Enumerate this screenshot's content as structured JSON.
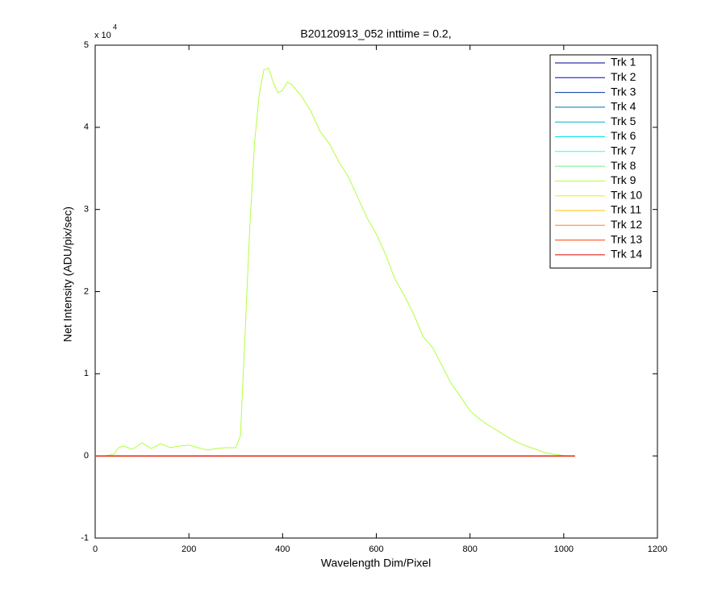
{
  "chart_data": {
    "type": "line",
    "title": "B20120913_052 inttime = 0.2,",
    "xlabel": "Wavelength Dim/Pixel",
    "ylabel": "Net Intensity (ADU/pix/sec)",
    "y_multiplier": "x 10",
    "y_multiplier_exponent": "4",
    "xlim": [
      0,
      1200
    ],
    "xticks": [
      0,
      200,
      400,
      600,
      800,
      1000,
      1200
    ],
    "ylim": [
      -1,
      5
    ],
    "yticks": [
      -1,
      0,
      1,
      2,
      3,
      4,
      5
    ],
    "grid": false,
    "legend": "top-right",
    "series": [
      {
        "name": "Trk 1",
        "color": "#00008f",
        "x": [
          1,
          1024
        ],
        "values": [
          0,
          0
        ]
      },
      {
        "name": "Trk 2",
        "color": "#0000cf",
        "x": [
          1,
          1024
        ],
        "values": [
          0,
          0
        ]
      },
      {
        "name": "Trk 3",
        "color": "#0030a0",
        "x": [
          1,
          1024
        ],
        "values": [
          0,
          0
        ]
      },
      {
        "name": "Trk 4",
        "color": "#0070b0",
        "x": [
          1,
          1024
        ],
        "values": [
          0,
          0
        ]
      },
      {
        "name": "Trk 5",
        "color": "#00b0d0",
        "x": [
          1,
          1024
        ],
        "values": [
          0,
          0
        ]
      },
      {
        "name": "Trk 6",
        "color": "#00e0ef",
        "x": [
          1,
          1024
        ],
        "values": [
          0,
          0
        ]
      },
      {
        "name": "Trk 7",
        "color": "#30ffdf",
        "x": [
          1,
          1024
        ],
        "values": [
          0,
          0
        ]
      },
      {
        "name": "Trk 8",
        "color": "#70ef8f",
        "x": [
          1,
          1024
        ],
        "values": [
          0,
          0
        ]
      },
      {
        "name": "Trk 9",
        "color": "#b0ff3f",
        "x": [
          0,
          20,
          40,
          50,
          60,
          80,
          100,
          120,
          140,
          160,
          180,
          200,
          220,
          240,
          260,
          280,
          300,
          310,
          320,
          330,
          340,
          350,
          360,
          370,
          380,
          390,
          400,
          410,
          420,
          440,
          460,
          480,
          500,
          520,
          540,
          560,
          580,
          600,
          620,
          640,
          660,
          680,
          700,
          720,
          740,
          760,
          780,
          800,
          820,
          840,
          860,
          880,
          900,
          920,
          940,
          960,
          980,
          1000,
          1024
        ],
        "values": [
          0,
          0,
          0.02,
          0.1,
          0.12,
          0.08,
          0.16,
          0.09,
          0.15,
          0.1,
          0.12,
          0.13,
          0.1,
          0.07,
          0.09,
          0.1,
          0.1,
          0.25,
          1.5,
          2.8,
          3.8,
          4.4,
          4.7,
          4.72,
          4.55,
          4.42,
          4.45,
          4.55,
          4.52,
          4.38,
          4.2,
          3.95,
          3.8,
          3.58,
          3.4,
          3.15,
          2.9,
          2.7,
          2.45,
          2.15,
          1.95,
          1.72,
          1.45,
          1.32,
          1.1,
          0.88,
          0.72,
          0.55,
          0.45,
          0.37,
          0.3,
          0.23,
          0.17,
          0.12,
          0.08,
          0.04,
          0.02,
          0.005,
          0
        ]
      },
      {
        "name": "Trk 10",
        "color": "#efef00",
        "x": [
          1,
          1024
        ],
        "values": [
          0,
          0
        ]
      },
      {
        "name": "Trk 11",
        "color": "#ffbf00",
        "x": [
          1,
          1024
        ],
        "values": [
          0,
          0
        ]
      },
      {
        "name": "Trk 12",
        "color": "#ff7f20",
        "x": [
          1,
          1024
        ],
        "values": [
          0,
          0
        ]
      },
      {
        "name": "Trk 13",
        "color": "#ff4000",
        "x": [
          1,
          1024
        ],
        "values": [
          0,
          0
        ]
      },
      {
        "name": "Trk 14",
        "color": "#df0000",
        "x": [
          1,
          1024
        ],
        "values": [
          0,
          0
        ]
      }
    ]
  }
}
